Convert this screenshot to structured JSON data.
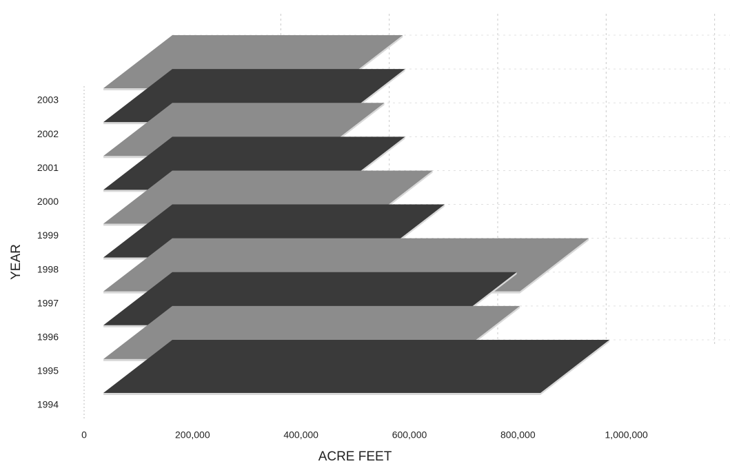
{
  "chart_data": {
    "type": "bar3d",
    "x_label": "ACRE FEET",
    "y_label": "YEAR",
    "categories": [
      "1994",
      "1995",
      "1996",
      "1997",
      "1998",
      "1999",
      "2000",
      "2001",
      "2002",
      "2003"
    ],
    "values": [
      806000,
      641000,
      635000,
      768000,
      502000,
      480000,
      429000,
      391000,
      429000,
      425000
    ],
    "colors": [
      "#3a3a3a",
      "#8c8c8c"
    ],
    "xlim": [
      0,
      1200000
    ],
    "xticks": [
      0,
      {
        "value": 200000,
        "label": "200,000"
      },
      {
        "value": 400000,
        "label": "400,000"
      },
      {
        "value": 600000,
        "label": "600,000"
      },
      {
        "value": 800000,
        "label": "800,000"
      },
      {
        "value": 1000000,
        "label": "1,000,000"
      }
    ],
    "grid": true
  }
}
